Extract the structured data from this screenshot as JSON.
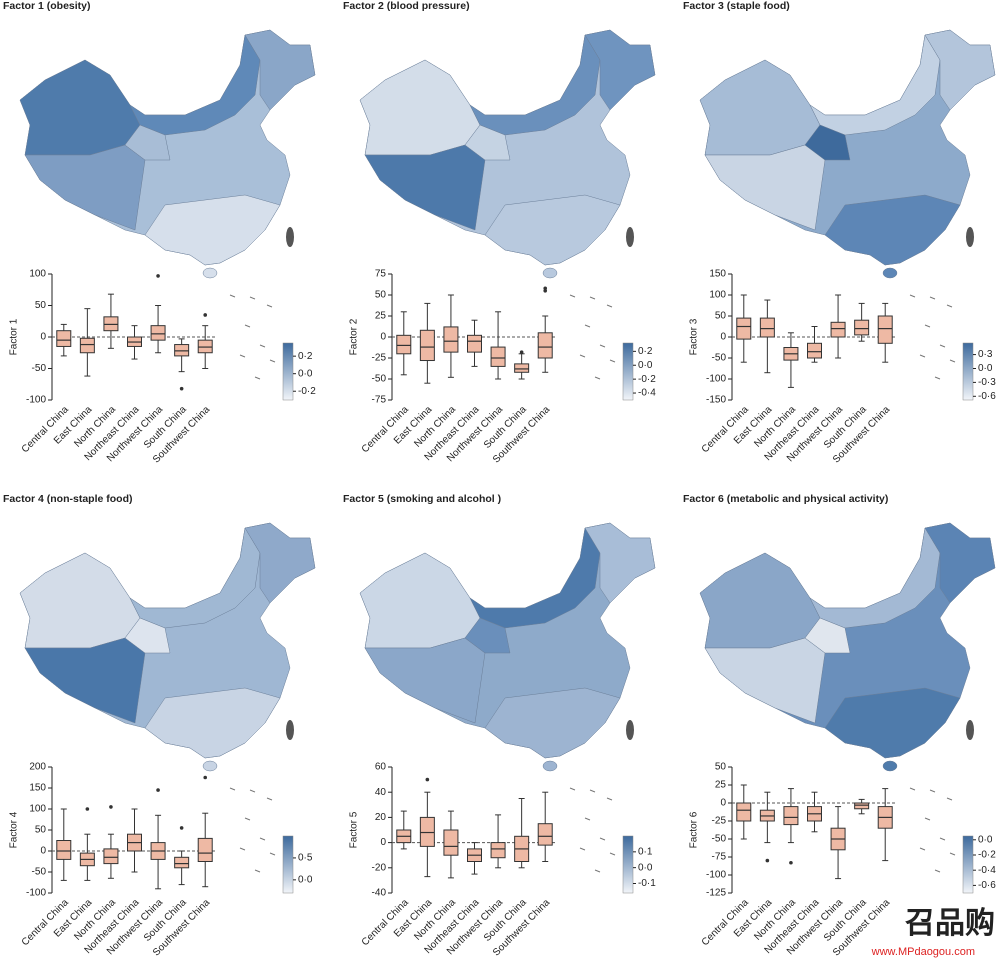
{
  "chart_data": [
    {
      "type": "box",
      "title": "Factor 1 (obesity)",
      "ylabel": "Factor 1",
      "categories": [
        "Central China",
        "East China",
        "North China",
        "Northeast China",
        "Northwest China",
        "South China",
        "Southwest China"
      ],
      "stats": [
        [
          -30,
          -15,
          -5,
          10,
          20
        ],
        [
          -62,
          -25,
          -12,
          -2,
          45
        ],
        [
          -18,
          10,
          20,
          32,
          68
        ],
        [
          -35,
          -15,
          -8,
          0,
          18
        ],
        [
          -25,
          -5,
          5,
          18,
          50
        ],
        [
          -55,
          -30,
          -22,
          -12,
          -3
        ],
        [
          -50,
          -25,
          -16,
          -5,
          18
        ]
      ],
      "outliers": [
        [],
        [],
        [],
        [],
        [
          97
        ],
        [
          -82
        ],
        [
          35
        ]
      ],
      "box_color": "#eeb9a4",
      "ylim": [
        -100,
        100
      ],
      "yticks": [
        -100,
        -50,
        0,
        50,
        100
      ],
      "colorbar": {
        "lim": [
          -0.3,
          0.35
        ],
        "ticks": [
          {
            "value": 0.2,
            "label": "0·2"
          },
          {
            "value": 0,
            "label": "0·0"
          },
          {
            "value": -0.2,
            "label": "-0·2"
          }
        ]
      }
    },
    {
      "type": "box",
      "title": "Factor 2 (blood pressure)",
      "ylabel": "Factor 2",
      "categories": [
        "Central China",
        "East China",
        "North China",
        "Northeast China",
        "Northwest China",
        "South China",
        "Southwest China"
      ],
      "stats": [
        [
          -45,
          -20,
          -10,
          2,
          30
        ],
        [
          -55,
          -28,
          -12,
          8,
          40
        ],
        [
          -48,
          -18,
          -5,
          12,
          50
        ],
        [
          -35,
          -18,
          -5,
          2,
          20
        ],
        [
          -50,
          -35,
          -25,
          -12,
          30
        ],
        [
          -50,
          -42,
          -38,
          -32,
          -20
        ],
        [
          -42,
          -25,
          -12,
          5,
          25
        ]
      ],
      "outliers": [
        [],
        [],
        [],
        [],
        [],
        [
          -18
        ],
        [
          55,
          58
        ]
      ],
      "box_color": "#eeb9a4",
      "ylim": [
        -75,
        75
      ],
      "yticks": [
        -75,
        -50,
        -25,
        0,
        25,
        50,
        75
      ],
      "colorbar": {
        "lim": [
          -0.5,
          0.32
        ],
        "ticks": [
          {
            "value": 0.2,
            "label": "0·2"
          },
          {
            "value": 0,
            "label": "0·0"
          },
          {
            "value": -0.2,
            "label": "-0·2"
          },
          {
            "value": -0.4,
            "label": "-0·4"
          }
        ]
      }
    },
    {
      "type": "box",
      "title": "Factor 3 (staple food)",
      "ylabel": "Factor 3",
      "categories": [
        "Central China",
        "East China",
        "North China",
        "Northeast China",
        "Northwest China",
        "South China",
        "Southwest China"
      ],
      "stats": [
        [
          -60,
          -5,
          25,
          45,
          100
        ],
        [
          -85,
          0,
          20,
          45,
          88
        ],
        [
          -120,
          -55,
          -40,
          -25,
          10
        ],
        [
          -60,
          -50,
          -35,
          -15,
          25
        ],
        [
          -50,
          0,
          20,
          35,
          100
        ],
        [
          -10,
          5,
          20,
          40,
          80
        ],
        [
          -60,
          -15,
          20,
          50,
          80
        ]
      ],
      "outliers": [
        [],
        [],
        [],
        [],
        [],
        [],
        []
      ],
      "box_color": "#eeb9a4",
      "ylim": [
        -150,
        150
      ],
      "yticks": [
        -150,
        -100,
        -50,
        0,
        50,
        100,
        150
      ],
      "colorbar": {
        "lim": [
          -0.68,
          0.55
        ],
        "ticks": [
          {
            "value": 0.3,
            "label": "0·3"
          },
          {
            "value": 0,
            "label": "0·0"
          },
          {
            "value": -0.3,
            "label": "-0·3"
          },
          {
            "value": -0.6,
            "label": "-0·6"
          }
        ]
      }
    },
    {
      "type": "box",
      "title": "Factor 4 (non-staple food)",
      "ylabel": "Factor 4",
      "categories": [
        "Central China",
        "East China",
        "North China",
        "Northeast China",
        "Northwest China",
        "South China",
        "Southwest China"
      ],
      "stats": [
        [
          -70,
          -20,
          0,
          25,
          100
        ],
        [
          -70,
          -35,
          -20,
          -5,
          40
        ],
        [
          -65,
          -30,
          -15,
          5,
          40
        ],
        [
          -50,
          0,
          20,
          40,
          100
        ],
        [
          -90,
          -20,
          0,
          20,
          85
        ],
        [
          -80,
          -40,
          -30,
          -15,
          0
        ],
        [
          -85,
          -25,
          -5,
          30,
          90
        ]
      ],
      "outliers": [
        [],
        [
          100
        ],
        [
          105
        ],
        [],
        [
          145
        ],
        [
          55
        ],
        [
          175
        ]
      ],
      "box_color": "#eeb9a4",
      "ylim": [
        -100,
        200
      ],
      "yticks": [
        -100,
        -50,
        0,
        50,
        100,
        150,
        200
      ],
      "colorbar": {
        "lim": [
          -0.3,
          1.0
        ],
        "ticks": [
          {
            "value": 0.5,
            "label": "0·5"
          },
          {
            "value": 0,
            "label": "0·0"
          }
        ]
      }
    },
    {
      "type": "box",
      "title": "Factor 5 (smoking and alcohol )",
      "ylabel": "Factor 5",
      "categories": [
        "Central China",
        "East China",
        "North China",
        "Northeast China",
        "Northwest China",
        "South China",
        "Southwest China"
      ],
      "stats": [
        [
          -5,
          0,
          5,
          10,
          25
        ],
        [
          -27,
          -3,
          8,
          20,
          40
        ],
        [
          -28,
          -10,
          -3,
          10,
          25
        ],
        [
          -25,
          -15,
          -10,
          -5,
          0
        ],
        [
          -20,
          -12,
          -5,
          0,
          22
        ],
        [
          -20,
          -15,
          -5,
          5,
          35
        ],
        [
          -15,
          -2,
          5,
          15,
          40
        ]
      ],
      "outliers": [
        [],
        [
          50
        ],
        [],
        [],
        [],
        [],
        []
      ],
      "box_color": "#eeb9a4",
      "ylim": [
        -40,
        60
      ],
      "yticks": [
        -40,
        -20,
        0,
        20,
        40,
        60
      ],
      "colorbar": {
        "lim": [
          -0.16,
          0.2
        ],
        "ticks": [
          {
            "value": 0.1,
            "label": "0·1"
          },
          {
            "value": 0,
            "label": "0·0"
          },
          {
            "value": -0.1,
            "label": "-0·1"
          }
        ]
      }
    },
    {
      "type": "box",
      "title": "Factor 6 (metabolic and physical activity)",
      "ylabel": "Factor 6",
      "categories": [
        "Central China",
        "East China",
        "North China",
        "Northeast China",
        "Northwest China",
        "South China",
        "Southwest China"
      ],
      "stats": [
        [
          -50,
          -25,
          -10,
          0,
          25
        ],
        [
          -55,
          -25,
          -18,
          -10,
          15
        ],
        [
          -55,
          -30,
          -20,
          -5,
          20
        ],
        [
          -40,
          -25,
          -15,
          -5,
          15
        ],
        [
          -105,
          -65,
          -50,
          -35,
          -5
        ],
        [
          -15,
          -8,
          -3,
          0,
          5
        ],
        [
          -80,
          -35,
          -20,
          -5,
          20
        ]
      ],
      "outliers": [
        [],
        [
          -80
        ],
        [
          -83
        ],
        [],
        [],
        [],
        []
      ],
      "box_color": "#eeb9a4",
      "ylim": [
        -125,
        50
      ],
      "yticks": [
        -125,
        -100,
        -75,
        -50,
        -25,
        0,
        25,
        50
      ],
      "colorbar": {
        "lim": [
          -0.7,
          0.05
        ],
        "ticks": [
          {
            "value": 0,
            "label": "0·0"
          },
          {
            "value": -0.2,
            "label": "-0·2"
          },
          {
            "value": -0.4,
            "label": "-0·4"
          },
          {
            "value": -0.6,
            "label": "-0·6"
          }
        ]
      }
    }
  ],
  "watermark": {
    "logo": "召品购",
    "url": "www.MPdaogou.com"
  }
}
